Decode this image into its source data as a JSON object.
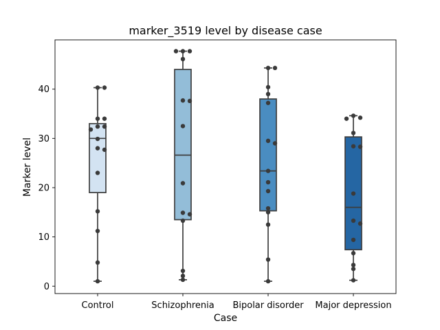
{
  "chart_data": {
    "type": "box",
    "title": "marker_3519 level by disease case",
    "xlabel": "Case",
    "ylabel": "Marker level",
    "categories": [
      "Control",
      "Schizophrenia",
      "Bipolar disorder",
      "Major depression"
    ],
    "ylim": [
      -1.5,
      50
    ],
    "yticks": [
      0,
      10,
      20,
      30,
      40
    ],
    "box_colors": [
      "#d3e3f2",
      "#93bdd8",
      "#4a8dc1",
      "#2566a3"
    ],
    "boxes": [
      {
        "whisker_low": 1.0,
        "q1": 19.0,
        "median": 30.0,
        "q3": 33.0,
        "whisker_high": 40.3
      },
      {
        "whisker_low": 1.3,
        "q1": 13.5,
        "median": 26.6,
        "q3": 44.0,
        "whisker_high": 47.7
      },
      {
        "whisker_low": 1.0,
        "q1": 15.3,
        "median": 23.4,
        "q3": 38.0,
        "whisker_high": 44.3
      },
      {
        "whisker_low": 1.2,
        "q1": 7.4,
        "median": 16.0,
        "q3": 30.3,
        "whisker_high": 34.6
      }
    ],
    "points": [
      [
        40.3,
        40.3,
        34.0,
        34.0,
        32.4,
        32.4,
        31.8,
        29.9,
        28.0,
        27.7,
        23.0,
        15.2,
        11.2,
        4.8,
        1.0
      ],
      [
        47.7,
        47.7,
        47.7,
        46.1,
        37.7,
        37.6,
        32.5,
        20.9,
        14.9,
        14.6,
        13.3,
        3.1,
        2.1,
        1.3
      ],
      [
        44.3,
        44.3,
        40.4,
        39.0,
        37.2,
        29.5,
        29.0,
        23.4,
        21.1,
        19.3,
        15.8,
        15.0,
        12.5,
        5.4,
        1.0
      ],
      [
        34.6,
        34.2,
        34.0,
        31.1,
        28.4,
        28.3,
        18.8,
        13.3,
        12.7,
        9.4,
        6.7,
        4.3,
        3.5,
        1.2
      ]
    ],
    "grid": false,
    "legend": "none"
  }
}
